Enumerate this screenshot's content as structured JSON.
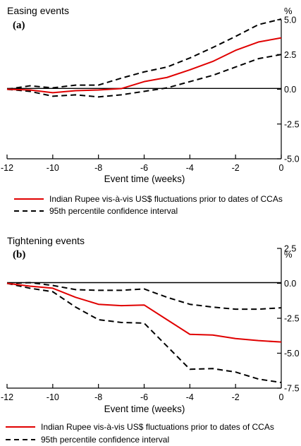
{
  "chart_data": [
    {
      "type": "line",
      "title": "Easing events",
      "panel_label": "(a)",
      "xlabel": "Event time (weeks)",
      "ylabel_unit": "%",
      "xlim": [
        -12,
        0
      ],
      "ylim": [
        -5,
        5
      ],
      "x_ticks": [
        "-12",
        "-10",
        "-8",
        "-6",
        "-4",
        "-2",
        "0"
      ],
      "x_tick_values": [
        -12,
        -10,
        -8,
        -6,
        -4,
        -2,
        0
      ],
      "y_ticks": [
        "5.0",
        "2.5",
        "0.0",
        "-2.5",
        "-5.0"
      ],
      "y_tick_values": [
        5,
        2.5,
        0,
        -2.5,
        -5
      ],
      "x": [
        -12,
        -11,
        -10,
        -9,
        -8,
        -7,
        -6,
        -5,
        -4,
        -3,
        -2,
        -1,
        0
      ],
      "series": [
        {
          "name": "Indian Rupee vis-à-vis US$ fluctuations prior to dates of CCAs",
          "style": "solid",
          "color": "#e00000",
          "values": [
            0,
            -0.05,
            -0.25,
            -0.1,
            -0.05,
            0.05,
            0.55,
            0.85,
            1.4,
            2.0,
            2.8,
            3.4,
            3.7
          ]
        },
        {
          "name": "95th percentile confidence interval",
          "style": "dashed",
          "color": "#000000",
          "values": [
            0,
            0.25,
            0.1,
            0.3,
            0.3,
            0.8,
            1.25,
            1.6,
            2.25,
            3.0,
            3.8,
            4.65,
            5.05
          ]
        },
        {
          "name": "",
          "style": "dashed",
          "color": "#000000",
          "values": [
            0,
            -0.15,
            -0.5,
            -0.4,
            -0.55,
            -0.4,
            -0.15,
            0.1,
            0.55,
            1.0,
            1.6,
            2.2,
            2.5
          ]
        }
      ],
      "legend_position": "below"
    },
    {
      "type": "line",
      "title": "Tightening events",
      "panel_label": "(b)",
      "xlabel": "Event time (weeks)",
      "ylabel_unit": "%",
      "xlim": [
        -12,
        0
      ],
      "ylim": [
        -7.5,
        2.5
      ],
      "x_ticks": [
        "-12",
        "-10",
        "-8",
        "-6",
        "-4",
        "-2",
        "0"
      ],
      "x_tick_values": [
        -12,
        -10,
        -8,
        -6,
        -4,
        -2,
        0
      ],
      "y_ticks": [
        "2.5",
        "0.0",
        "-2.5",
        "-5.0",
        "-7.5"
      ],
      "y_tick_values": [
        2.5,
        0,
        -2.5,
        -5,
        -7.5
      ],
      "x": [
        -12,
        -11,
        -10,
        -9,
        -8,
        -7,
        -6,
        -5,
        -4,
        -3,
        -2,
        -1,
        0
      ],
      "series": [
        {
          "name": "Indian Rupee vis-à-vis US$ fluctuations prior to dates of CCAs",
          "style": "solid",
          "color": "#e00000",
          "values": [
            0,
            -0.2,
            -0.35,
            -1.0,
            -1.5,
            -1.6,
            -1.55,
            -2.6,
            -3.65,
            -3.7,
            -3.95,
            -4.1,
            -4.2
          ]
        },
        {
          "name": "95th percentile confidence interval",
          "style": "dashed",
          "color": "#000000",
          "values": [
            0,
            0.05,
            -0.15,
            -0.45,
            -0.5,
            -0.5,
            -0.4,
            -1.0,
            -1.5,
            -1.7,
            -1.85,
            -1.85,
            -1.75
          ]
        },
        {
          "name": "",
          "style": "dashed",
          "color": "#000000",
          "values": [
            0,
            -0.35,
            -0.6,
            -1.7,
            -2.6,
            -2.8,
            -2.85,
            -4.5,
            -6.15,
            -6.1,
            -6.35,
            -6.85,
            -7.1
          ]
        }
      ],
      "legend_position": "below"
    }
  ]
}
